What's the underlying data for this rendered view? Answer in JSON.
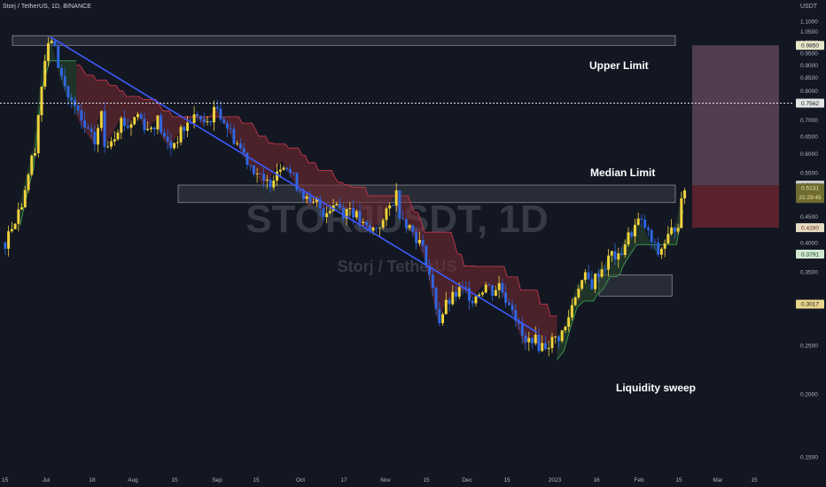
{
  "header": {
    "symbol_line": "Storj / TetherUS, 1D, BINANCE",
    "currency": "USDT"
  },
  "watermark": {
    "main": "STORJUSDT, 1D",
    "sub": "Storj / TetherUS"
  },
  "colors": {
    "background": "#131722",
    "up_candle": "#f0d23c",
    "down_candle": "#2f66e0",
    "trendline": "#3d5bff",
    "supertrend_down_fill": "#7a2a32",
    "supertrend_up_fill": "#2a4a2e",
    "zone_box": "#5d606b",
    "target_box": "#6b4f63",
    "stop_box": "#6b2630"
  },
  "chart_data": {
    "type": "candlestick",
    "title": "Storj / TetherUS, 1D, BINANCE",
    "y_scale": "log",
    "y_range": [
      0.15,
      1.15
    ],
    "y_ticks": [
      "1.1000",
      "1.0500",
      "1.0000",
      "0.9500",
      "0.9000",
      "0.8500",
      "0.8000",
      "0.7500",
      "0.7000",
      "0.6500",
      "0.6000",
      "0.5500",
      "0.5000",
      "0.4500",
      "0.4000",
      "0.3500",
      "0.3000",
      "0.2500",
      "0.2000",
      "0.1500"
    ],
    "x_ticks": [
      "15",
      "Jul",
      "18",
      "Aug",
      "15",
      "Sep",
      "15",
      "Oct",
      "17",
      "Nov",
      "15",
      "Dec",
      "15",
      "2023",
      "16",
      "Feb",
      "15",
      "Mar",
      "15"
    ],
    "close_path": [
      [
        0,
        0.4
      ],
      [
        5,
        0.48
      ],
      [
        9,
        0.62
      ],
      [
        12,
        0.92
      ],
      [
        14,
        1.02
      ],
      [
        15,
        0.96
      ],
      [
        17,
        0.85
      ],
      [
        19,
        0.78
      ],
      [
        21,
        0.74
      ],
      [
        23,
        0.69
      ],
      [
        25,
        0.66
      ],
      [
        27,
        0.63
      ],
      [
        29,
        0.72
      ],
      [
        30,
        0.62
      ],
      [
        33,
        0.66
      ],
      [
        35,
        0.7
      ],
      [
        37,
        0.68
      ],
      [
        40,
        0.72
      ],
      [
        43,
        0.67
      ],
      [
        46,
        0.7
      ],
      [
        48,
        0.64
      ],
      [
        50,
        0.62
      ],
      [
        53,
        0.66
      ],
      [
        56,
        0.7
      ],
      [
        58,
        0.72
      ],
      [
        60,
        0.68
      ],
      [
        62,
        0.71
      ],
      [
        64,
        0.74
      ],
      [
        66,
        0.7
      ],
      [
        68,
        0.66
      ],
      [
        70,
        0.63
      ],
      [
        72,
        0.6
      ],
      [
        74,
        0.57
      ],
      [
        76,
        0.55
      ],
      [
        78,
        0.52
      ],
      [
        80,
        0.53
      ],
      [
        82,
        0.56
      ],
      [
        84,
        0.58
      ],
      [
        86,
        0.55
      ],
      [
        88,
        0.52
      ],
      [
        90,
        0.5
      ],
      [
        92,
        0.47
      ],
      [
        94,
        0.48
      ],
      [
        96,
        0.46
      ],
      [
        98,
        0.47
      ],
      [
        100,
        0.48
      ],
      [
        102,
        0.46
      ],
      [
        104,
        0.47
      ],
      [
        106,
        0.45
      ],
      [
        108,
        0.43
      ],
      [
        110,
        0.42
      ],
      [
        112,
        0.43
      ],
      [
        114,
        0.44
      ],
      [
        116,
        0.47
      ],
      [
        118,
        0.5
      ],
      [
        119,
        0.46
      ],
      [
        121,
        0.44
      ],
      [
        123,
        0.42
      ],
      [
        125,
        0.4
      ],
      [
        127,
        0.37
      ],
      [
        129,
        0.32
      ],
      [
        131,
        0.28
      ],
      [
        133,
        0.3
      ],
      [
        135,
        0.31
      ],
      [
        137,
        0.32
      ],
      [
        139,
        0.32
      ],
      [
        141,
        0.31
      ],
      [
        143,
        0.32
      ],
      [
        145,
        0.33
      ],
      [
        147,
        0.32
      ],
      [
        149,
        0.33
      ],
      [
        151,
        0.31
      ],
      [
        153,
        0.3
      ],
      [
        155,
        0.27
      ],
      [
        157,
        0.25
      ],
      [
        159,
        0.26
      ],
      [
        161,
        0.25
      ],
      [
        163,
        0.25
      ],
      [
        165,
        0.255
      ],
      [
        167,
        0.26
      ],
      [
        169,
        0.27
      ],
      [
        171,
        0.3
      ],
      [
        173,
        0.33
      ],
      [
        175,
        0.34
      ],
      [
        177,
        0.33
      ],
      [
        179,
        0.35
      ],
      [
        181,
        0.36
      ],
      [
        183,
        0.38
      ],
      [
        185,
        0.37
      ],
      [
        187,
        0.4
      ],
      [
        189,
        0.42
      ],
      [
        191,
        0.44
      ],
      [
        193,
        0.43
      ],
      [
        195,
        0.4
      ],
      [
        197,
        0.38
      ],
      [
        199,
        0.4
      ],
      [
        201,
        0.42
      ],
      [
        203,
        0.44
      ],
      [
        205,
        0.5131
      ]
    ],
    "price_levels": [
      {
        "label": "Upper Limit",
        "value": 1.0,
        "badge": null
      },
      {
        "label": "",
        "value": 0.985,
        "badge": "0.9850"
      },
      {
        "label": "Median Limit",
        "value": 0.7562,
        "badge": "0.7562"
      },
      {
        "label": "",
        "value": 0.52,
        "badge": "0.5200"
      },
      {
        "label": "",
        "value": 0.5131,
        "badge": "0.5131"
      },
      {
        "label": "",
        "value": 0.428,
        "badge": "0.4280"
      },
      {
        "label": "",
        "value": 0.3791,
        "badge": "0.3791"
      },
      {
        "label": "",
        "value": 0.3017,
        "badge": "0.3017"
      }
    ],
    "countdown": "21:29:45",
    "annotations": [
      "Upper Limit",
      "Median Limit",
      "Liquidity sweep"
    ],
    "trendline": {
      "from": {
        "bar": 14,
        "price": 1.025
      },
      "to": {
        "bar": 161,
        "price": 0.265
      }
    },
    "zones": [
      {
        "name": "upper-limit-zone",
        "bars": [
          0,
          200
        ],
        "price": [
          0.985,
          1.03
        ]
      },
      {
        "name": "resistance-zone",
        "bars": [
          50,
          200
        ],
        "price": [
          0.48,
          0.52
        ]
      },
      {
        "name": "liquidity-zone",
        "bars": [
          177,
          199
        ],
        "price": [
          0.313,
          0.345
        ]
      }
    ],
    "grid": false
  },
  "labels": {
    "upper_limit": "Upper Limit",
    "median_limit": "Median Limit",
    "liquidity_sweep": "Liquidity sweep"
  }
}
